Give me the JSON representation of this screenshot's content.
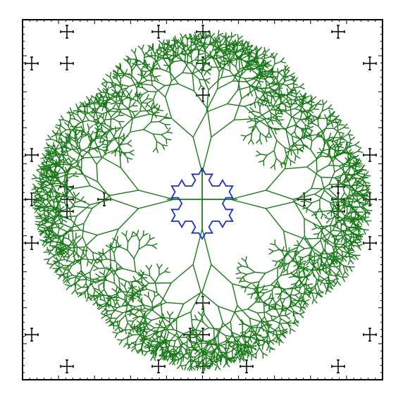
{
  "diagram": {
    "kind": "fractal-tree-with-koch-snowflake",
    "colors": {
      "background": "#ffffff",
      "frame": "#000000",
      "tree": "#1a7a1a",
      "snowflake": "#1f2fcc",
      "axis": "#1a7a1a",
      "crosses": "#000000"
    },
    "tree": {
      "arms": 4,
      "depth": 8,
      "branch_angle_deg": 32,
      "length_ratio": 0.78
    },
    "snowflake": {
      "iterations": 2
    },
    "frame_ticks_per_side": 50
  }
}
